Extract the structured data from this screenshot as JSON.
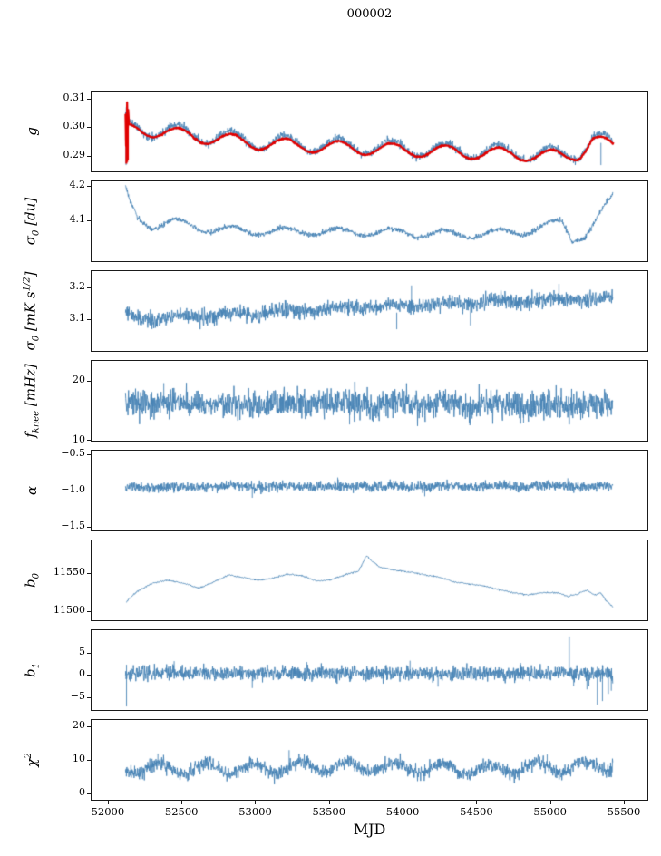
{
  "figure": {
    "background": "#ffffff",
    "axis_color": "#1a1a1a",
    "raw_line_color": "#4682b4",
    "fit_line_color": "#e00000"
  },
  "chart_data": {
    "type": "line",
    "title": "000002",
    "xlabel": "MJD",
    "grid": false,
    "legend_position": "none",
    "xlim": [
      51890,
      55660
    ],
    "x_start": 52120,
    "x_end": 55425,
    "xticks": [
      {
        "value": 52000,
        "label": "52000"
      },
      {
        "value": 52500,
        "label": "52500"
      },
      {
        "value": 53000,
        "label": "53000"
      },
      {
        "value": 53500,
        "label": "53500"
      },
      {
        "value": 54000,
        "label": "54000"
      },
      {
        "value": 54500,
        "label": "54500"
      },
      {
        "value": 55000,
        "label": "55000"
      },
      {
        "value": 55500,
        "label": "55500"
      }
    ],
    "subplots": [
      {
        "id": "g",
        "ylabel": "g",
        "ylim": [
          0.2845,
          0.3125
        ],
        "yticks": [
          {
            "value": 0.29,
            "label": "0.29"
          },
          {
            "value": 0.3,
            "label": "0.30"
          },
          {
            "value": 0.31,
            "label": "0.31"
          }
        ],
        "series": [
          {
            "name": "gain-raw",
            "color": "#4682b4",
            "width": 0.9,
            "seed": 11,
            "noise": 0.0007,
            "points": 1600,
            "anchors": [
              [
                52120,
                0.2995
              ],
              [
                52200,
                0.3
              ],
              [
                52500,
                0.298
              ],
              [
                53000,
                0.295
              ],
              [
                53500,
                0.2936
              ],
              [
                54000,
                0.2926
              ],
              [
                54500,
                0.2916
              ],
              [
                54900,
                0.2908
              ],
              [
                55100,
                0.2902
              ],
              [
                55200,
                0.2915
              ],
              [
                55290,
                0.2965
              ],
              [
                55360,
                0.295
              ],
              [
                55425,
                0.2935
              ]
            ],
            "osc": {
              "amp": 0.0026,
              "period": 362,
              "phase": 52389
            },
            "burst": {
              "until": 52138,
              "amp": 0.0085
            },
            "spikes": [
              [
                52124,
                0.2867,
                0.3055
              ],
              [
                55345,
                0.2867,
                0.2945
              ]
            ]
          },
          {
            "name": "gain-smoothed-fit",
            "color": "#e00000",
            "width": 2.2,
            "seed": 5,
            "noise": 0.00015,
            "points": 900,
            "x_end": 55432,
            "anchors": [
              [
                52120,
                0.2989
              ],
              [
                52200,
                0.2994
              ],
              [
                52500,
                0.2974
              ],
              [
                53000,
                0.2944
              ],
              [
                53500,
                0.293
              ],
              [
                54000,
                0.292
              ],
              [
                54500,
                0.291
              ],
              [
                54900,
                0.2902
              ],
              [
                55100,
                0.2896
              ],
              [
                55200,
                0.2909
              ],
              [
                55290,
                0.2959
              ],
              [
                55360,
                0.2944
              ],
              [
                55425,
                0.2929
              ]
            ],
            "osc": {
              "amp": 0.0022,
              "period": 362,
              "phase": 52389
            },
            "burst": {
              "until": 52145,
              "amp": 0.008
            },
            "spikes": [
              [
                52126,
                0.2872,
                0.3048
              ],
              [
                52131,
                0.2878,
                0.3042
              ],
              [
                52136,
                0.2885,
                0.3035
              ]
            ]
          }
        ]
      },
      {
        "id": "sigma0-du",
        "ylabel": "σ_{0} [du]",
        "ylim": [
          3.985,
          4.212
        ],
        "yticks": [
          {
            "value": 4.1,
            "label": "4.1"
          },
          {
            "value": 4.2,
            "label": "4.2"
          }
        ],
        "series": [
          {
            "name": "sigma0-du",
            "color": "#4682b4",
            "width": 0.9,
            "seed": 21,
            "noise": 0.0035,
            "points": 1600,
            "anchors": [
              [
                52120,
                4.19
              ],
              [
                52150,
                4.148
              ],
              [
                52200,
                4.11
              ],
              [
                52300,
                4.086
              ],
              [
                52450,
                4.095
              ],
              [
                52700,
                4.076
              ],
              [
                53000,
                4.07
              ],
              [
                53500,
                4.07
              ],
              [
                54000,
                4.066
              ],
              [
                54400,
                4.06
              ],
              [
                54800,
                4.068
              ],
              [
                55000,
                4.088
              ],
              [
                55080,
                4.094
              ],
              [
                55150,
                4.05
              ],
              [
                55240,
                4.06
              ],
              [
                55330,
                4.11
              ],
              [
                55425,
                4.168
              ]
            ],
            "osc": {
              "amp": 0.011,
              "period": 362,
              "phase": 52389
            }
          }
        ]
      },
      {
        "id": "sigma0-mk",
        "ylabel": "σ_{0} [mK s^{1/2}]",
        "ylim": [
          3.0,
          3.25
        ],
        "yticks": [
          {
            "value": 3.1,
            "label": "3.1"
          },
          {
            "value": 3.2,
            "label": "3.2"
          }
        ],
        "series": [
          {
            "name": "sigma0-mk",
            "color": "#4682b4",
            "width": 0.9,
            "seed": 33,
            "noise": 0.012,
            "points": 1600,
            "anchors": [
              [
                52120,
                3.112
              ],
              [
                52250,
                3.098
              ],
              [
                52500,
                3.108
              ],
              [
                53000,
                3.117
              ],
              [
                53500,
                3.132
              ],
              [
                54000,
                3.14
              ],
              [
                54500,
                3.152
              ],
              [
                55000,
                3.16
              ],
              [
                55425,
                3.163
              ]
            ],
            "osc": {
              "amp": 0.005,
              "period": 362,
              "phase": 52389
            },
            "spikes": [
              [
                53960,
                3.068,
                3.12
              ],
              [
                54060,
                3.13,
                3.205
              ],
              [
                54460,
                3.08,
                3.14
              ],
              [
                55060,
                3.14,
                3.21
              ]
            ]
          }
        ]
      },
      {
        "id": "fknee",
        "ylabel": "f_{knee} [mHz]",
        "ylim": [
          10,
          23.3
        ],
        "yticks": [
          {
            "value": 10,
            "label": "10"
          },
          {
            "value": 20,
            "label": "20"
          }
        ],
        "series": [
          {
            "name": "fknee",
            "color": "#4682b4",
            "width": 0.9,
            "seed": 41,
            "noise": 1.15,
            "points": 1600,
            "anchors": [
              [
                52120,
                16.3
              ],
              [
                53000,
                16.1
              ],
              [
                54000,
                16.2
              ],
              [
                55425,
                15.9
              ]
            ],
            "osc": {
              "amp": 0.25,
              "period": 362,
              "phase": 52389
            },
            "spikes": [
              [
                52380,
                19.6,
                16.5
              ],
              [
                53640,
                12.7,
                15.6
              ],
              [
                54820,
                13.0,
                15.8
              ]
            ]
          }
        ]
      },
      {
        "id": "alpha",
        "ylabel": "α",
        "ylim": [
          -1.55,
          -0.45
        ],
        "yticks": [
          {
            "value": -1.5,
            "label": "−1.5"
          },
          {
            "value": -1.0,
            "label": "−1.0"
          },
          {
            "value": -0.5,
            "label": "−0.5"
          }
        ],
        "series": [
          {
            "name": "alpha",
            "color": "#4682b4",
            "width": 0.9,
            "seed": 55,
            "noise": 0.034,
            "points": 1600,
            "anchors": [
              [
                52120,
                -0.952
              ],
              [
                53500,
                -0.945
              ],
              [
                55425,
                -0.94
              ]
            ],
            "osc": {
              "amp": 0.008,
              "period": 362,
              "phase": 52389
            },
            "spikes": [
              [
                52980,
                -1.1,
                -0.95
              ],
              [
                53560,
                -0.82,
                -0.95
              ],
              [
                54150,
                -1.08,
                -0.95
              ],
              [
                55120,
                -0.83,
                -0.95
              ]
            ]
          }
        ]
      },
      {
        "id": "b0",
        "ylabel": "b_{0}",
        "ylim": [
          11488,
          11592
        ],
        "yticks": [
          {
            "value": 11500,
            "label": "11500"
          },
          {
            "value": 11550,
            "label": "11550"
          }
        ],
        "series": [
          {
            "name": "b0",
            "color": "#4682b4",
            "width": 0.9,
            "seed": 63,
            "noise": 0.5,
            "points": 900,
            "x_start": 52125,
            "anchors": [
              [
                52125,
                11512
              ],
              [
                52200,
                11526
              ],
              [
                52300,
                11536
              ],
              [
                52400,
                11540
              ],
              [
                52500,
                11537
              ],
              [
                52620,
                11530
              ],
              [
                52720,
                11538
              ],
              [
                52820,
                11547
              ],
              [
                52920,
                11544
              ],
              [
                53020,
                11540
              ],
              [
                53120,
                11543
              ],
              [
                53220,
                11548
              ],
              [
                53320,
                11546
              ],
              [
                53420,
                11539
              ],
              [
                53520,
                11541
              ],
              [
                53620,
                11548
              ],
              [
                53700,
                11552
              ],
              [
                53755,
                11572
              ],
              [
                53785,
                11566
              ],
              [
                53850,
                11557
              ],
              [
                53950,
                11553
              ],
              [
                54050,
                11551
              ],
              [
                54150,
                11547
              ],
              [
                54250,
                11544
              ],
              [
                54350,
                11538
              ],
              [
                54450,
                11535
              ],
              [
                54550,
                11533
              ],
              [
                54650,
                11528
              ],
              [
                54750,
                11524
              ],
              [
                54850,
                11521
              ],
              [
                54950,
                11524
              ],
              [
                55050,
                11524
              ],
              [
                55120,
                11519
              ],
              [
                55180,
                11522
              ],
              [
                55250,
                11527
              ],
              [
                55300,
                11521
              ],
              [
                55340,
                11524
              ],
              [
                55380,
                11514
              ],
              [
                55425,
                11505
              ]
            ]
          }
        ]
      },
      {
        "id": "b1",
        "ylabel": "b_{1}",
        "ylim": [
          -7.8,
          10
        ],
        "yticks": [
          {
            "value": -5,
            "label": "−5"
          },
          {
            "value": 0,
            "label": "0"
          },
          {
            "value": 5,
            "label": "5"
          }
        ],
        "series": [
          {
            "name": "b1",
            "color": "#4682b4",
            "width": 0.9,
            "seed": 77,
            "noise": 0.8,
            "points": 1600,
            "anchors": [
              [
                52120,
                0.4
              ],
              [
                55425,
                0.3
              ]
            ],
            "spikes": [
              [
                52127,
                -7.0,
                2.3
              ],
              [
                52450,
                0,
                3.1
              ],
              [
                52980,
                -2.9,
                0
              ],
              [
                53350,
                0,
                2.9
              ],
              [
                54050,
                0,
                3.2
              ],
              [
                54240,
                -2.6,
                0
              ],
              [
                54800,
                0,
                2.7
              ],
              [
                55130,
                0,
                8.6
              ],
              [
                55160,
                -2.5,
                1.0
              ],
              [
                55250,
                -3.2,
                1.5
              ],
              [
                55320,
                -6.6,
                1.8
              ],
              [
                55355,
                -5.8,
                2.2
              ],
              [
                55395,
                -4.2,
                1.5
              ],
              [
                55415,
                -3.5,
                1.0
              ]
            ]
          }
        ]
      },
      {
        "id": "chi2",
        "ylabel": "χ^{2}",
        "ylim": [
          -2,
          21.8
        ],
        "yticks": [
          {
            "value": 0,
            "label": "0"
          },
          {
            "value": 10,
            "label": "10"
          },
          {
            "value": 20,
            "label": "20"
          }
        ],
        "series": [
          {
            "name": "chi2",
            "color": "#4682b4",
            "width": 0.9,
            "seed": 88,
            "noise": 1.05,
            "points": 1600,
            "anchors": [
              [
                52120,
                7.4
              ],
              [
                53000,
                7.3
              ],
              [
                53760,
                8.0
              ],
              [
                54500,
                7.0
              ],
              [
                55000,
                7.6
              ],
              [
                55425,
                8.2
              ]
            ],
            "osc": {
              "amp": 1.6,
              "period": 320,
              "phase": 52270
            },
            "spikes": [
              [
                52340,
                9.0,
                11.8
              ],
              [
                53230,
                8.0,
                12.8
              ],
              [
                54980,
                8.0,
                11.5
              ]
            ]
          }
        ]
      }
    ]
  }
}
